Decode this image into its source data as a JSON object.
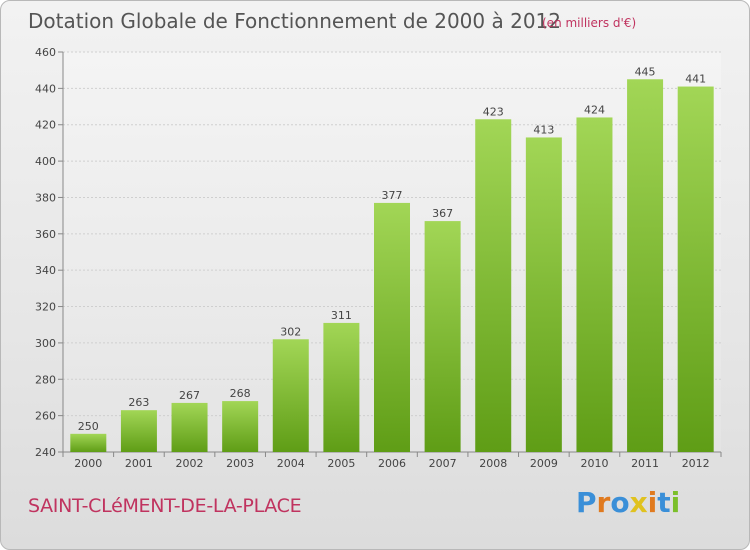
{
  "title": "Dotation Globale de Fonctionnement de 2000 à 2012",
  "subtitle": "(en milliers d'€)",
  "commune": "SAINT-CLéMENT-DE-LA-PLACE",
  "logo": {
    "letters": [
      "P",
      "r",
      "o",
      "x",
      "i",
      "t",
      "i"
    ],
    "colors": [
      "#3a8fd8",
      "#e07a1f",
      "#3a8fd8",
      "#e0c21f",
      "#e07a1f",
      "#3a8fd8",
      "#7bbf2a"
    ]
  },
  "chart_data": {
    "type": "bar",
    "categories": [
      "2000",
      "2001",
      "2002",
      "2003",
      "2004",
      "2005",
      "2006",
      "2007",
      "2008",
      "2009",
      "2010",
      "2011",
      "2012"
    ],
    "values": [
      250,
      263,
      267,
      268,
      302,
      311,
      377,
      367,
      423,
      413,
      424,
      445,
      441
    ],
    "ylim": [
      240,
      460
    ],
    "yticks": [
      240,
      260,
      280,
      300,
      320,
      340,
      360,
      380,
      400,
      420,
      440,
      460
    ],
    "grid": true,
    "bar_color": "#7ab828"
  }
}
